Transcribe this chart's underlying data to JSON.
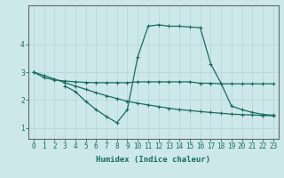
{
  "xlabel": "Humidex (Indice chaleur)",
  "ylabel": "",
  "background_color": "#cce8eb",
  "grid_color": "#b8d8db",
  "line_color": "#1a6b62",
  "xlim": [
    -0.5,
    23.5
  ],
  "ylim": [
    0.6,
    5.4
  ],
  "yticks": [
    1,
    2,
    3,
    4
  ],
  "xticks": [
    0,
    1,
    2,
    3,
    4,
    5,
    6,
    7,
    8,
    9,
    10,
    11,
    12,
    13,
    14,
    15,
    16,
    17,
    18,
    19,
    20,
    21,
    22,
    23
  ],
  "series1_x": [
    0,
    1,
    2,
    3,
    4,
    5,
    6,
    7,
    8,
    9,
    10,
    11,
    12,
    13,
    14,
    15,
    16,
    17,
    18,
    19,
    20,
    21,
    22,
    23
  ],
  "series1_y": [
    3.0,
    2.8,
    2.72,
    2.68,
    2.65,
    2.63,
    2.62,
    2.62,
    2.62,
    2.62,
    2.65,
    2.65,
    2.65,
    2.65,
    2.65,
    2.65,
    2.6,
    2.6,
    2.58,
    2.58,
    2.58,
    2.58,
    2.58,
    2.58
  ],
  "series2_x": [
    3,
    4,
    5,
    6,
    7,
    8,
    9,
    10,
    11,
    12,
    13,
    14,
    15,
    16,
    17,
    18,
    19,
    20,
    21,
    22,
    23
  ],
  "series2_y": [
    2.5,
    2.3,
    1.95,
    1.65,
    1.4,
    1.18,
    1.65,
    3.55,
    4.65,
    4.7,
    4.65,
    4.65,
    4.62,
    4.6,
    3.3,
    2.6,
    1.78,
    1.65,
    1.55,
    1.48,
    1.45
  ],
  "series3_x": [
    0,
    1,
    2,
    3,
    4,
    5,
    6,
    7,
    8,
    9,
    10,
    11,
    12,
    13,
    14,
    15,
    16,
    17,
    18,
    19,
    20,
    21,
    22,
    23
  ],
  "series3_y": [
    3.0,
    2.88,
    2.75,
    2.62,
    2.5,
    2.38,
    2.26,
    2.15,
    2.05,
    1.95,
    1.88,
    1.82,
    1.76,
    1.7,
    1.65,
    1.62,
    1.58,
    1.55,
    1.52,
    1.49,
    1.47,
    1.46,
    1.44,
    1.43
  ]
}
